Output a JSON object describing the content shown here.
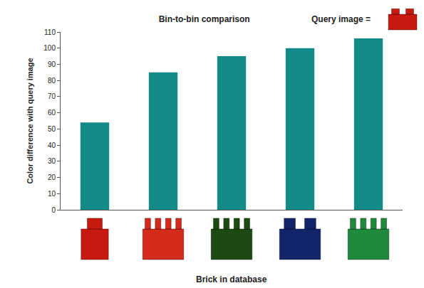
{
  "chart_data": {
    "type": "bar",
    "title": "Bin-to-bin comparison",
    "x_label": "Brick in database",
    "y_label": "Color difference with query image",
    "annotations": [
      "Query image ="
    ],
    "categories": [
      null,
      null,
      null,
      null,
      null
    ],
    "values": [
      54,
      85,
      95,
      100,
      106
    ],
    "color": "#138a8a",
    "ylim": [
      0,
      110
    ],
    "yticks": [
      0,
      10,
      20,
      30,
      40,
      50,
      60,
      70,
      80,
      90,
      100,
      110
    ],
    "grid": false,
    "tick_labels": "y"
  }
}
